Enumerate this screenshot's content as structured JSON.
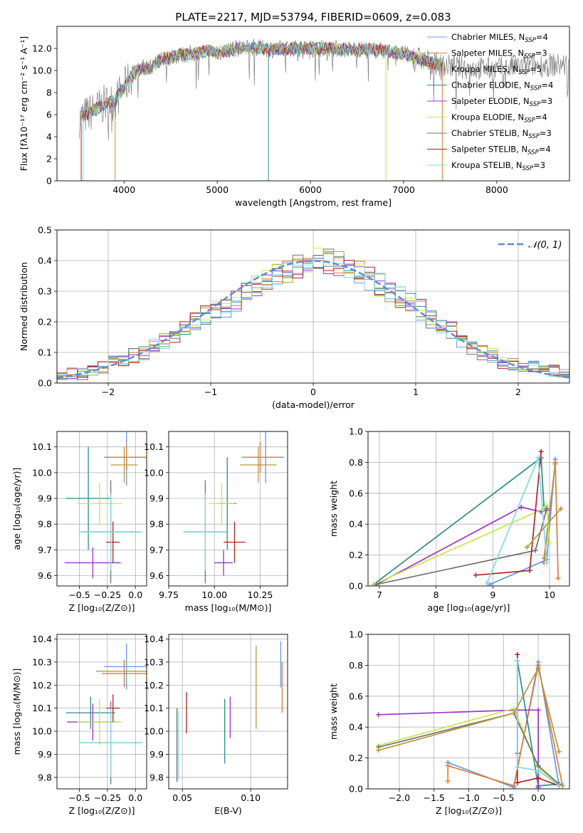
{
  "title": "PLATE=2217, MJD=53794, FIBERID=0609, z=0.083",
  "colors": {
    "Chabrier MILES": "#6495ed",
    "Salpeter MILES": "#e07b39",
    "Kroupa MILES": "#b8963b",
    "Chabrier ELODIE": "#2e8b8b",
    "Salpeter ELODIE": "#9932cc",
    "Kroupa ELODIE": "#c8e64a",
    "Chabrier STELIB": "#707070",
    "Salpeter STELIB": "#b22222",
    "Kroupa STELIB": "#7fd9e6",
    "gaussian": "#5b8fd6"
  },
  "chart_data": [
    {
      "id": "spectrum",
      "type": "line",
      "xlabel": "wavelength [Angstrom, rest frame]",
      "ylabel": "Flux [fλ10⁻¹⁷ erg cm⁻² s⁻¹ A⁻¹]",
      "xlim": [
        3280,
        8780
      ],
      "ylim": [
        0,
        14
      ],
      "xticks": [
        4000,
        5000,
        6000,
        7000,
        8000
      ],
      "yticks": [
        0,
        2,
        4,
        6,
        8,
        10,
        12
      ],
      "grid": false,
      "legend": "top-right",
      "series": [
        {
          "name": "Chabrier MILES",
          "ssp": "4"
        },
        {
          "name": "Salpeter MILES",
          "ssp": "3"
        },
        {
          "name": "Kroupa MILES",
          "ssp": "5"
        },
        {
          "name": "Chabrier ELODIE",
          "ssp": "4"
        },
        {
          "name": "Salpeter ELODIE",
          "ssp": "3"
        },
        {
          "name": "Kroupa ELODIE",
          "ssp": "4"
        },
        {
          "name": "Chabrier STELIB",
          "ssp": "3"
        },
        {
          "name": "Salpeter STELIB",
          "ssp": "4"
        },
        {
          "name": "Kroupa STELIB",
          "ssp": "3"
        }
      ],
      "data_spectrum": {
        "x": [
          3500,
          3550,
          3600,
          3700,
          3800,
          3900,
          4000,
          4100,
          4200,
          4300,
          4400,
          4500,
          4600,
          4700,
          4800,
          4900,
          5000,
          5200,
          5400,
          5600,
          5800,
          6000,
          6200,
          6400,
          6600,
          6800,
          7000,
          7200,
          7400,
          7600,
          7800,
          8000,
          8200,
          8400
        ],
        "y": [
          5.5,
          5.8,
          6.0,
          6.5,
          7.0,
          7.2,
          8.5,
          9.8,
          10.2,
          10.3,
          11.0,
          11.2,
          11.4,
          11.5,
          11.6,
          11.8,
          11.6,
          12.0,
          12.1,
          11.9,
          12.0,
          12.0,
          12.0,
          11.9,
          11.9,
          11.8,
          11.5,
          11.0,
          10.5,
          10.3,
          10.2,
          10.1,
          10.3,
          10.5
        ]
      }
    },
    {
      "id": "residuals",
      "type": "bar",
      "xlabel": "(data-model)/error",
      "ylabel": "Normed distribution",
      "xlim": [
        -2.5,
        2.5
      ],
      "ylim": [
        0,
        0.5
      ],
      "xticks": [
        -2,
        -1,
        0,
        1,
        2
      ],
      "yticks": [
        0.0,
        0.1,
        0.2,
        0.3,
        0.4,
        0.5
      ],
      "grid": true,
      "legend": "top-right",
      "legend_label": "𝒩(0, 1)",
      "bin_width": 0.1,
      "x_start": -2.5,
      "values": [
        0.03,
        0.03,
        0.03,
        0.04,
        0.05,
        0.07,
        0.08,
        0.09,
        0.1,
        0.12,
        0.14,
        0.16,
        0.18,
        0.2,
        0.22,
        0.24,
        0.25,
        0.27,
        0.3,
        0.32,
        0.34,
        0.36,
        0.37,
        0.38,
        0.4,
        0.41,
        0.4,
        0.39,
        0.38,
        0.36,
        0.34,
        0.32,
        0.3,
        0.28,
        0.26,
        0.24,
        0.21,
        0.19,
        0.17,
        0.14,
        0.12,
        0.1,
        0.09,
        0.07,
        0.06,
        0.05,
        0.05,
        0.04,
        0.04,
        0.03
      ]
    },
    {
      "id": "age_vs_Z",
      "type": "scatter",
      "xlabel": "Z [log₁₀(Z/Z⊙)]",
      "ylabel": "age  [log₁₀(age/yr)]",
      "xlim": [
        -0.7,
        0.1
      ],
      "ylim": [
        9.56,
        10.16
      ],
      "xticks": [
        -0.5,
        -0.25,
        0.0
      ],
      "xticklabels": [
        "−0.5",
        "−0.25",
        "0.0"
      ],
      "yticks": [
        9.6,
        9.7,
        9.8,
        9.9,
        10.0,
        10.1
      ],
      "grid": true,
      "points": [
        {
          "s": "Chabrier MILES",
          "x": -0.08,
          "xerr": 0.2,
          "y": 10.06,
          "yerr": 0.11
        },
        {
          "s": "Salpeter MILES",
          "x": -0.08,
          "xerr": 0.18,
          "y": 10.06,
          "yerr": 0.05
        },
        {
          "s": "Kroupa MILES",
          "x": -0.1,
          "xerr": 0.12,
          "y": 10.03,
          "yerr": 0.07
        },
        {
          "s": "Chabrier ELODIE",
          "x": -0.42,
          "xerr": 0.2,
          "y": 9.9,
          "yerr": 0.2
        },
        {
          "s": "Salpeter ELODIE",
          "x": -0.38,
          "xerr": 0.25,
          "y": 9.65,
          "yerr": 0.06
        },
        {
          "s": "Kroupa ELODIE",
          "x": -0.32,
          "xerr": 0.2,
          "y": 9.88,
          "yerr": 0.08
        },
        {
          "s": "Chabrier STELIB",
          "x": -0.22,
          "xerr": 0.25,
          "y": 9.77,
          "yerr": 0.2
        },
        {
          "s": "Salpeter STELIB",
          "x": -0.2,
          "xerr": 0.06,
          "y": 9.73,
          "yerr": 0.08
        },
        {
          "s": "Kroupa STELIB",
          "x": -0.22,
          "xerr": 0.28,
          "y": 9.77,
          "yerr": 0.15
        }
      ]
    },
    {
      "id": "age_vs_mass",
      "type": "scatter",
      "xlabel": "mass [log₁₀(M/M⊙)]",
      "ylabel": "",
      "xlim": [
        9.75,
        10.4
      ],
      "ylim": [
        9.56,
        10.16
      ],
      "xticks": [
        9.75,
        10.0,
        10.25
      ],
      "xticklabels": [
        "9.75",
        "10.00",
        "10.25"
      ],
      "yticks": [
        9.6,
        9.7,
        9.8,
        9.9,
        10.0,
        10.1
      ],
      "grid": true,
      "points": [
        {
          "s": "Chabrier MILES",
          "x": 10.28,
          "xerr": 0.1,
          "y": 10.06,
          "yerr": 0.1
        },
        {
          "s": "Salpeter MILES",
          "x": 10.25,
          "xerr": 0.1,
          "y": 10.06,
          "yerr": 0.06
        },
        {
          "s": "Kroupa MILES",
          "x": 10.24,
          "xerr": 0.1,
          "y": 10.03,
          "yerr": 0.07
        },
        {
          "s": "Chabrier ELODIE",
          "x": 10.07,
          "xerr": 0.05,
          "y": 9.88,
          "yerr": 0.18
        },
        {
          "s": "Salpeter ELODIE",
          "x": 10.05,
          "xerr": 0.05,
          "y": 9.65,
          "yerr": 0.05
        },
        {
          "s": "Kroupa ELODIE",
          "x": 10.04,
          "xerr": 0.07,
          "y": 9.88,
          "yerr": 0.08
        },
        {
          "s": "Chabrier STELIB",
          "x": 9.95,
          "xerr": 0.12,
          "y": 9.77,
          "yerr": 0.2
        },
        {
          "s": "Salpeter STELIB",
          "x": 10.11,
          "xerr": 0.06,
          "y": 9.73,
          "yerr": 0.08
        },
        {
          "s": "Kroupa STELIB",
          "x": 9.95,
          "xerr": 0.12,
          "y": 9.77,
          "yerr": 0.15
        }
      ]
    },
    {
      "id": "weight_vs_age",
      "type": "line",
      "xlabel": "age  [log₁₀(age/yr)]",
      "ylabel": "mass weight",
      "xlim": [
        6.8,
        10.35
      ],
      "ylim": [
        0,
        1
      ],
      "xticks": [
        7,
        8,
        9,
        10
      ],
      "yticks": [
        0.0,
        0.2,
        0.4,
        0.6,
        0.8,
        1.0
      ],
      "grid": true,
      "series": [
        {
          "name": "Chabrier MILES",
          "x": [
            8.95,
            9.95,
            10.1
          ],
          "y": [
            0.01,
            0.17,
            0.82
          ]
        },
        {
          "name": "Salpeter MILES",
          "x": [
            9.9,
            10.1,
            10.15
          ],
          "y": [
            0.15,
            0.8,
            0.05
          ]
        },
        {
          "name": "Kroupa MILES",
          "x": [
            9.9,
            10.1
          ],
          "y": [
            0.18,
            0.79
          ]
        },
        {
          "name": "Chabrier ELODIE",
          "x": [
            6.9,
            9.85,
            9.9
          ],
          "y": [
            0.01,
            0.83,
            0.52
          ]
        },
        {
          "name": "Salpeter ELODIE",
          "x": [
            6.95,
            9.5,
            9.85,
            9.95
          ],
          "y": [
            0.01,
            0.51,
            0.48,
            0.49
          ]
        },
        {
          "name": "Kroupa ELODIE",
          "x": [
            6.9,
            9.9,
            9.95,
            10.0
          ],
          "y": [
            0.01,
            0.5,
            0.52,
            0.28
          ]
        },
        {
          "name": "Chabrier STELIB",
          "x": [
            6.95,
            9.75,
            9.95
          ],
          "y": [
            0.01,
            0.23,
            0.5
          ]
        },
        {
          "name": "Salpeter STELIB",
          "x": [
            8.7,
            9.65,
            9.85
          ],
          "y": [
            0.07,
            0.1,
            0.87
          ]
        },
        {
          "name": "Kroupa STELIB",
          "x": [
            8.9,
            9.8,
            9.95
          ],
          "y": [
            0.02,
            0.83,
            0.15
          ]
        },
        {
          "name": "Kroupa MILES",
          "x": [
            9.6,
            10.2
          ],
          "y": [
            0.25,
            0.5
          ]
        }
      ]
    },
    {
      "id": "mass_vs_Z",
      "type": "scatter",
      "xlabel": "Z [log₁₀(Z/Z⊙)]",
      "ylabel": "mass [log₁₀(M/M⊙)]",
      "xlim": [
        -0.7,
        0.1
      ],
      "ylim": [
        9.75,
        10.42
      ],
      "xticks": [
        -0.5,
        -0.25,
        0.0
      ],
      "xticklabels": [
        "−0.5",
        "−0.25",
        "0.0"
      ],
      "yticks": [
        9.8,
        9.9,
        10.0,
        10.1,
        10.2,
        10.3,
        10.4
      ],
      "grid": true,
      "points": [
        {
          "s": "Chabrier MILES",
          "x": -0.08,
          "xerr": 0.2,
          "y": 10.28,
          "yerr": 0.1
        },
        {
          "s": "Salpeter MILES",
          "x": -0.1,
          "xerr": 0.2,
          "y": 10.25,
          "yerr": 0.06
        },
        {
          "s": "Kroupa MILES",
          "x": -0.1,
          "xerr": 0.25,
          "y": 10.26,
          "yerr": 0.04
        },
        {
          "s": "Chabrier ELODIE",
          "x": -0.4,
          "xerr": 0.22,
          "y": 10.08,
          "yerr": 0.07
        },
        {
          "s": "Salpeter ELODIE",
          "x": -0.38,
          "xerr": 0.23,
          "y": 10.04,
          "yerr": 0.08
        },
        {
          "s": "Kroupa ELODIE",
          "x": -0.32,
          "xerr": 0.2,
          "y": 10.04,
          "yerr": 0.1
        },
        {
          "s": "Chabrier STELIB",
          "x": -0.22,
          "xerr": 0.28,
          "y": 9.95,
          "yerr": 0.18
        },
        {
          "s": "Salpeter STELIB",
          "x": -0.2,
          "xerr": 0.06,
          "y": 10.1,
          "yerr": 0.06
        },
        {
          "s": "Kroupa STELIB",
          "x": -0.22,
          "xerr": 0.28,
          "y": 9.95,
          "yerr": 0.15
        }
      ]
    },
    {
      "id": "mass_vs_ebv",
      "type": "scatter",
      "xlabel": "E(B-V)",
      "ylabel": "",
      "xlim": [
        0.04,
        0.127
      ],
      "ylim": [
        9.75,
        10.42
      ],
      "xticks": [
        0.05,
        0.1
      ],
      "xticklabels": [
        "0.05",
        "0.10"
      ],
      "yticks": [
        9.8,
        9.9,
        10.0,
        10.1,
        10.2,
        10.3,
        10.4
      ],
      "grid": true,
      "points": [
        {
          "s": "Chabrier MILES",
          "x": 0.122,
          "xerr": 0,
          "y": 10.29,
          "yerr": 0.1
        },
        {
          "s": "Salpeter MILES",
          "x": 0.123,
          "xerr": 0,
          "y": 10.19,
          "yerr": 0.11
        },
        {
          "s": "Kroupa ELODIE",
          "x": 0.081,
          "xerr": 0,
          "y": 10.04,
          "yerr": 0.1
        },
        {
          "s": "Chabrier ELODIE",
          "x": 0.081,
          "xerr": 0,
          "y": 10.0,
          "yerr": 0.14
        },
        {
          "s": "Salpeter ELODIE",
          "x": 0.085,
          "xerr": 0,
          "y": 10.06,
          "yerr": 0.09
        },
        {
          "s": "Kroupa MILES",
          "x": 0.104,
          "xerr": 0,
          "y": 10.19,
          "yerr": 0.18
        },
        {
          "s": "Salpeter STELIB",
          "x": 0.053,
          "xerr": 0,
          "y": 10.08,
          "yerr": 0.09
        },
        {
          "s": "Chabrier STELIB",
          "x": 0.046,
          "xerr": 0,
          "y": 9.94,
          "yerr": 0.16
        },
        {
          "s": "Kroupa STELIB",
          "x": 0.047,
          "xerr": 0,
          "y": 9.94,
          "yerr": 0.15
        }
      ]
    },
    {
      "id": "weight_vs_Z",
      "type": "line",
      "xlabel": "Z [log₁₀(Z/Z⊙)]",
      "ylabel": "mass weight",
      "xlim": [
        -2.45,
        0.45
      ],
      "ylim": [
        0,
        1
      ],
      "xticks": [
        -2.0,
        -1.5,
        -1.0,
        -0.5,
        0.0
      ],
      "xticklabels": [
        "−2.0",
        "−1.5",
        "−1.0",
        "−0.5",
        "0.0"
      ],
      "yticks": [
        0.0,
        0.2,
        0.4,
        0.6,
        0.8,
        1.0
      ],
      "grid": true,
      "series": [
        {
          "name": "Chabrier MILES",
          "x": [
            -1.3,
            -0.35,
            0.0,
            0.3
          ],
          "y": [
            0.17,
            0.01,
            0.82,
            0.02
          ]
        },
        {
          "name": "Salpeter MILES",
          "x": [
            -1.3,
            -1.3,
            -0.35,
            0.0,
            0.35
          ],
          "y": [
            0.05,
            0.15,
            0.02,
            0.8,
            0.02
          ]
        },
        {
          "name": "Chabrier ELODIE",
          "x": [
            -0.3,
            -0.3,
            0.0,
            0.3
          ],
          "y": [
            0.23,
            0.83,
            0.02,
            0.03
          ]
        },
        {
          "name": "Salpeter ELODIE",
          "x": [
            -2.3,
            -0.3,
            0.0,
            0.0
          ],
          "y": [
            0.48,
            0.51,
            0.51,
            0.01
          ]
        },
        {
          "name": "Kroupa ELODIE",
          "x": [
            -2.3,
            -0.35,
            0.0,
            0.3
          ],
          "y": [
            0.28,
            0.52,
            0.14,
            0.02
          ]
        },
        {
          "name": "Chabrier STELIB",
          "x": [
            -2.3,
            -0.35,
            0.0,
            0.3
          ],
          "y": [
            0.27,
            0.49,
            0.15,
            0.03
          ]
        },
        {
          "name": "Salpeter STELIB",
          "x": [
            -0.3,
            -0.3,
            0.0,
            0.3
          ],
          "y": [
            0.87,
            0.04,
            0.07,
            0.02
          ]
        },
        {
          "name": "Kroupa STELIB",
          "x": [
            -0.3,
            -0.3,
            0.0,
            0.3
          ],
          "y": [
            0.83,
            0.14,
            0.12,
            0.02
          ]
        },
        {
          "name": "Kroupa MILES",
          "x": [
            -2.3,
            -0.35,
            0.0,
            0.3
          ],
          "y": [
            0.25,
            0.49,
            0.78,
            0.24
          ]
        }
      ]
    }
  ]
}
